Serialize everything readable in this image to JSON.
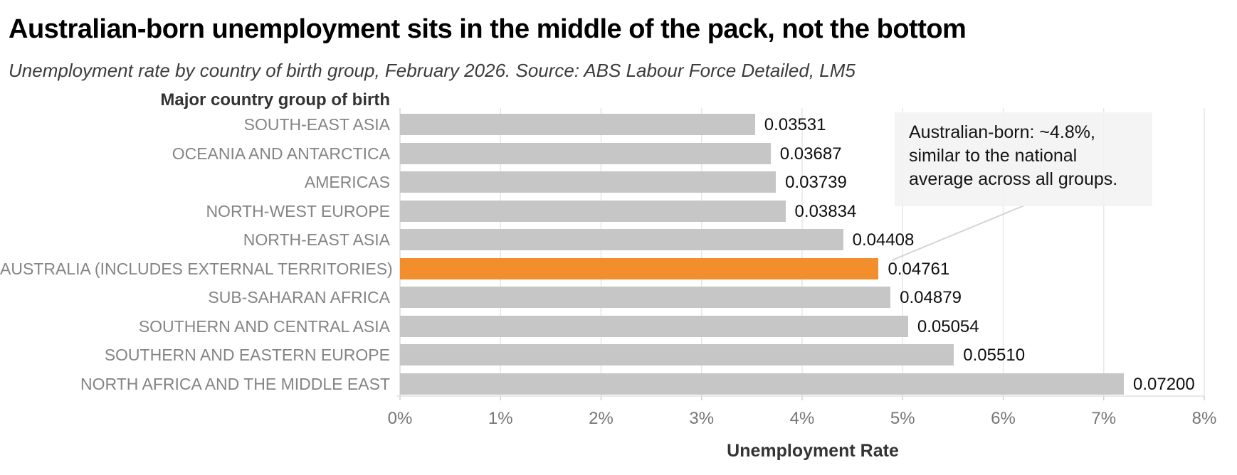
{
  "header": {
    "title": "Australian-born unemployment sits in the middle of the pack, not the bottom",
    "subtitle": "Unemployment rate by country of birth group, February 2026. Source: ABS Labour Force Detailed, LM5"
  },
  "chart_data": {
    "type": "bar",
    "orientation": "horizontal",
    "ylabel_header": "Major country group of birth",
    "xlabel": "Unemployment Rate",
    "xlim": [
      0,
      0.08
    ],
    "x_ticks": [
      "0%",
      "1%",
      "2%",
      "3%",
      "4%",
      "5%",
      "6%",
      "7%",
      "8%"
    ],
    "grid": true,
    "categories": [
      "SOUTH-EAST ASIA",
      "OCEANIA AND ANTARCTICA",
      "AMERICAS",
      "NORTH-WEST EUROPE",
      "NORTH-EAST ASIA",
      "AUSTRALIA (INCLUDES EXTERNAL TERRITORIES)",
      "SUB-SAHARAN AFRICA",
      "SOUTHERN AND CENTRAL ASIA",
      "SOUTHERN AND EASTERN EUROPE",
      "NORTH AFRICA AND THE MIDDLE EAST"
    ],
    "values": [
      0.03531,
      0.03687,
      0.03739,
      0.03834,
      0.04408,
      0.04761,
      0.04879,
      0.05054,
      0.0551,
      0.072
    ],
    "value_labels": [
      "0.03531",
      "0.03687",
      "0.03739",
      "0.03834",
      "0.04408",
      "0.04761",
      "0.04879",
      "0.05054",
      "0.05510",
      "0.07200"
    ],
    "highlight_category": "AUSTRALIA (INCLUDES EXTERNAL TERRITORIES)",
    "highlight_index": 5,
    "annotation": {
      "text": "Australian-born: ~4.8%, similar to the national average across all groups.",
      "lines": [
        "Australian-born: ~4.8%,",
        "similar to the national",
        "average across all groups."
      ]
    }
  },
  "colors": {
    "bar": "#c6c6c6",
    "highlight": "#f28e2b",
    "gridline": "#e7e7e7",
    "zero_line": "#dcdcdc",
    "axis_line": "#e0e0e0",
    "tick_mark": "#d0d0d0",
    "tick_label": "#767676",
    "category_label": "#848484",
    "value_label": "#0f0f0f",
    "leader_line": "#d4d4d4",
    "annotation_bg": "rgba(242,242,242,0.85)"
  }
}
